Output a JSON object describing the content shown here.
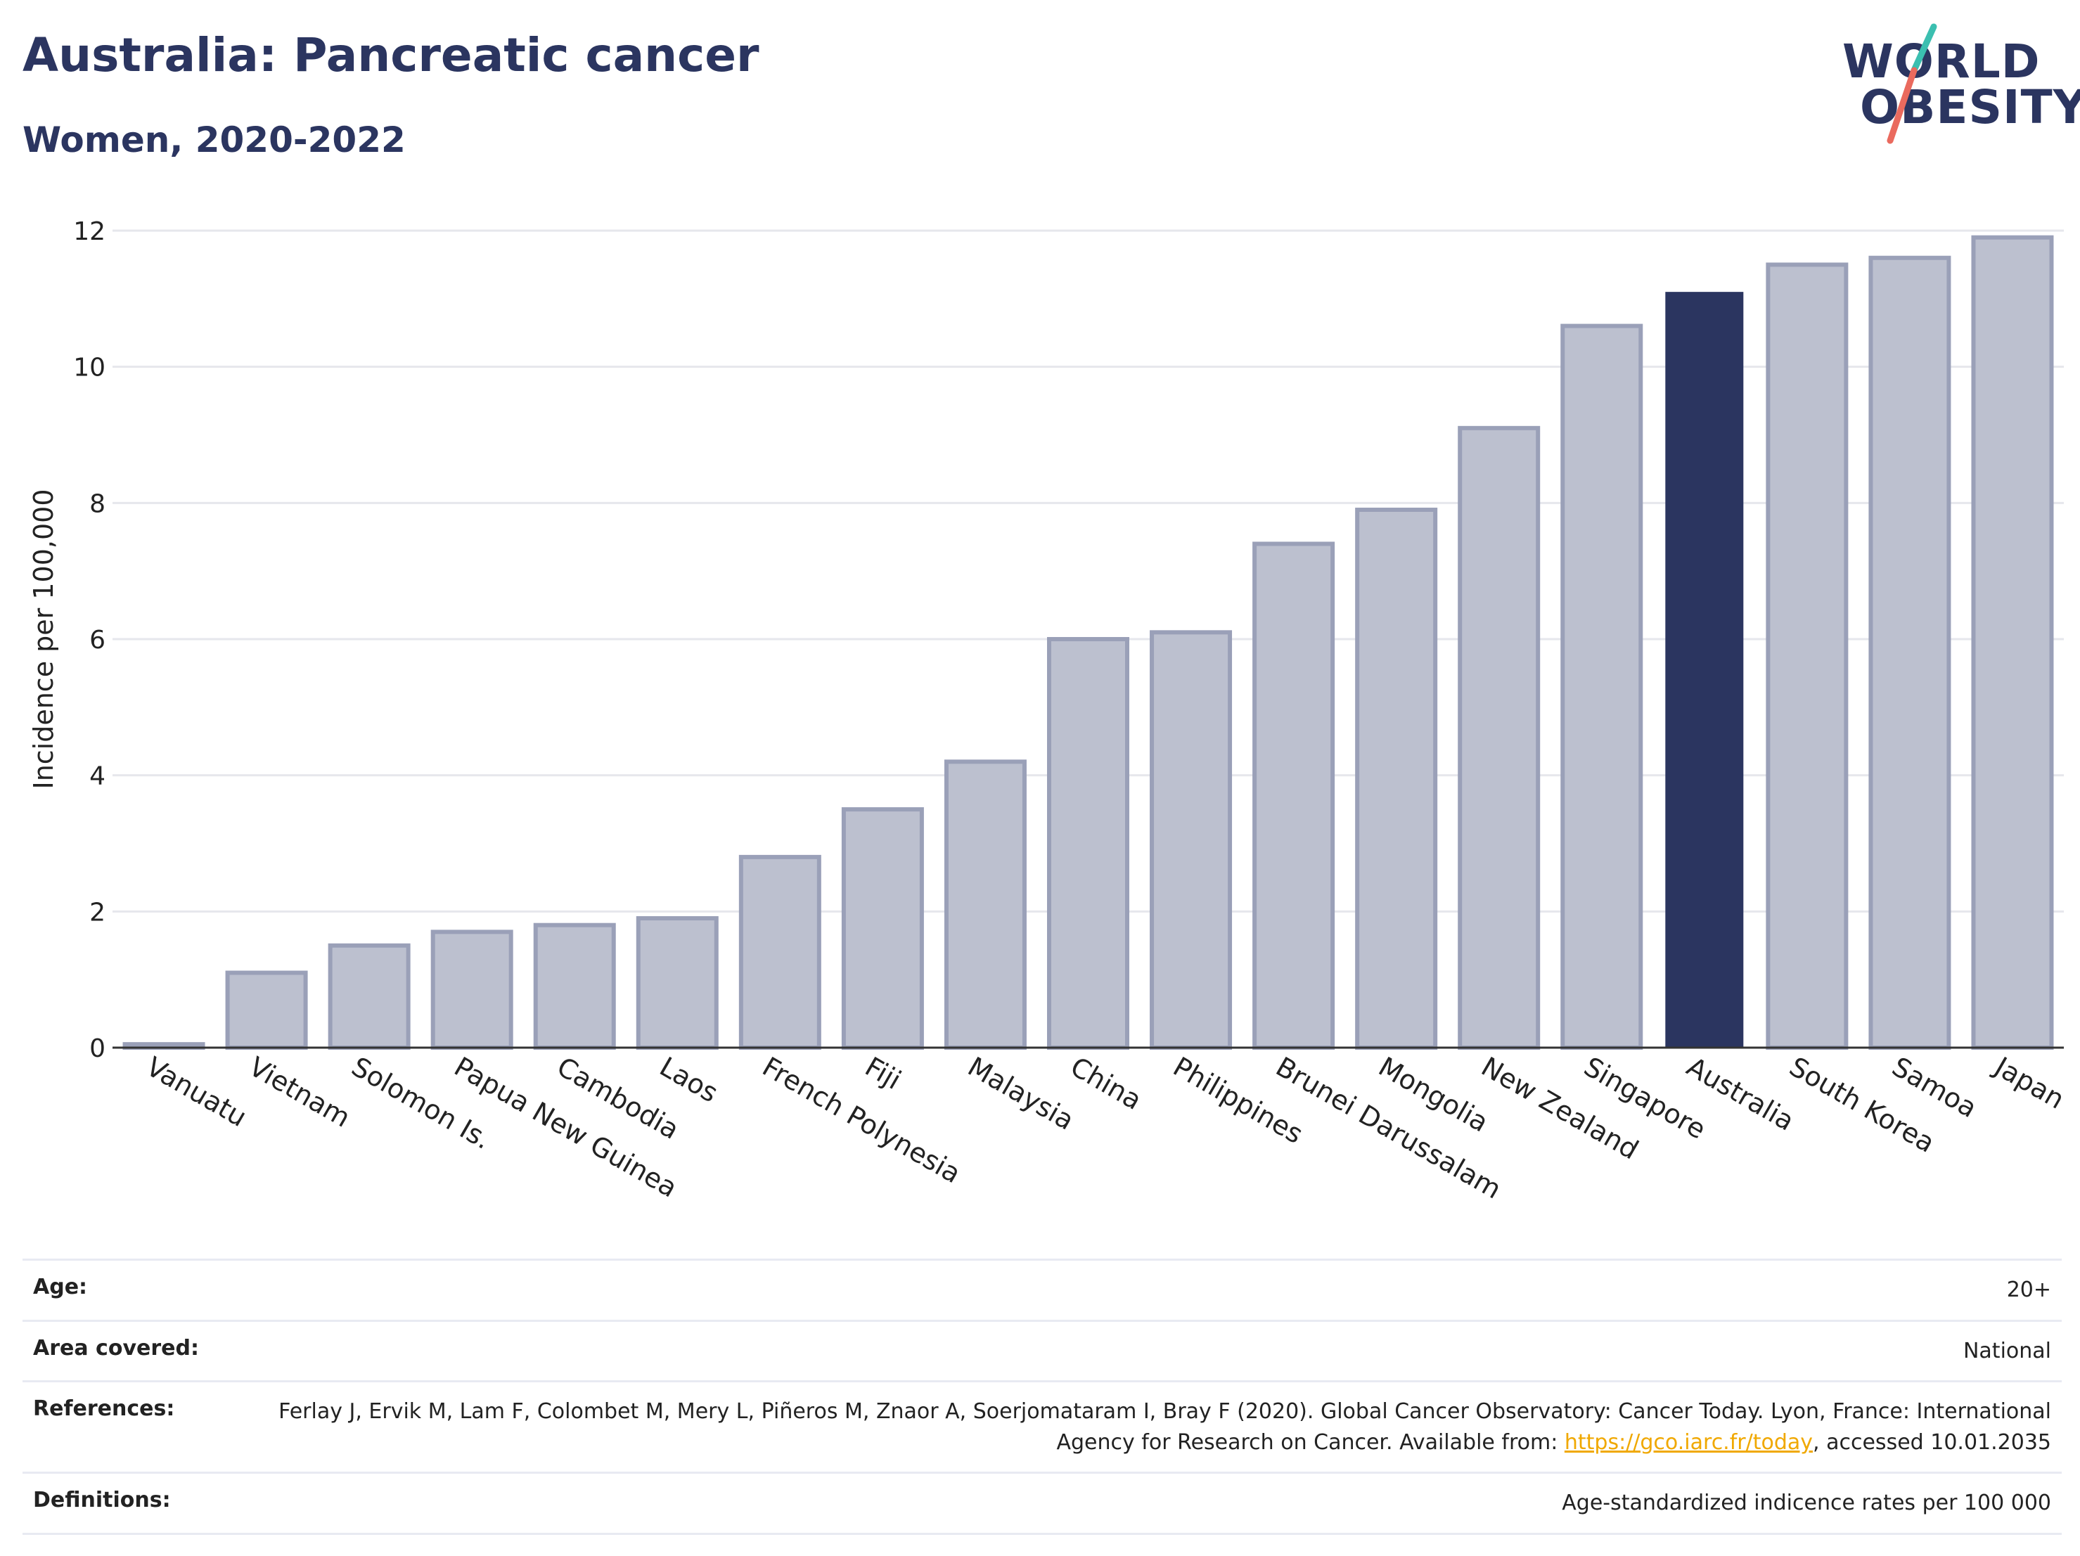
{
  "title": "Australia: Pancreatic cancer",
  "subtitle": "Women, 2020-2022",
  "logo": {
    "line1": "WORLD",
    "line2": "OBESITY"
  },
  "colors": {
    "highlight": "#2b3560",
    "bar": "#bcc0cf",
    "bar_edge": "#9aa0b8",
    "grid": "#e6e7ec",
    "text": "#2b3560",
    "link": "#f0a800"
  },
  "chart_data": {
    "type": "bar",
    "categories": [
      "Vanuatu",
      "Vietnam",
      "Solomon Is.",
      "Papua New Guinea",
      "Cambodia",
      "Laos",
      "French Polynesia",
      "Fiji",
      "Malaysia",
      "China",
      "Philippines",
      "Brunei Darussalam",
      "Mongolia",
      "New Zealand",
      "Singapore",
      "Australia",
      "South Korea",
      "Samoa",
      "Japan"
    ],
    "values": [
      0.05,
      1.1,
      1.5,
      1.7,
      1.8,
      1.9,
      2.8,
      3.5,
      4.2,
      6.0,
      6.1,
      7.4,
      7.9,
      9.1,
      10.6,
      11.1,
      11.5,
      11.6,
      11.9
    ],
    "highlight": "Australia",
    "ylabel": "Incidence per 100,000",
    "xlabel": "",
    "ylim": [
      0,
      12
    ],
    "yticks": [
      0,
      2,
      4,
      6,
      8,
      10,
      12
    ],
    "grid": true
  },
  "meta": {
    "age_label": "Age:",
    "age_value": "20+",
    "area_label": "Area covered:",
    "area_value": "National",
    "references_label": "References:",
    "references_text": "Ferlay J, Ervik M, Lam F, Colombet M, Mery L, Piñeros M, Znaor A, Soerjomataram I, Bray F (2020). Global Cancer Observatory: Cancer Today. Lyon, France: International Agency for Research on Cancer. Available from: ",
    "references_link": "https://gco.iarc.fr/today",
    "references_suffix": ", accessed 10.01.2035",
    "definitions_label": "Definitions:",
    "definitions_value": "Age-standardized indicence rates per 100 000"
  }
}
